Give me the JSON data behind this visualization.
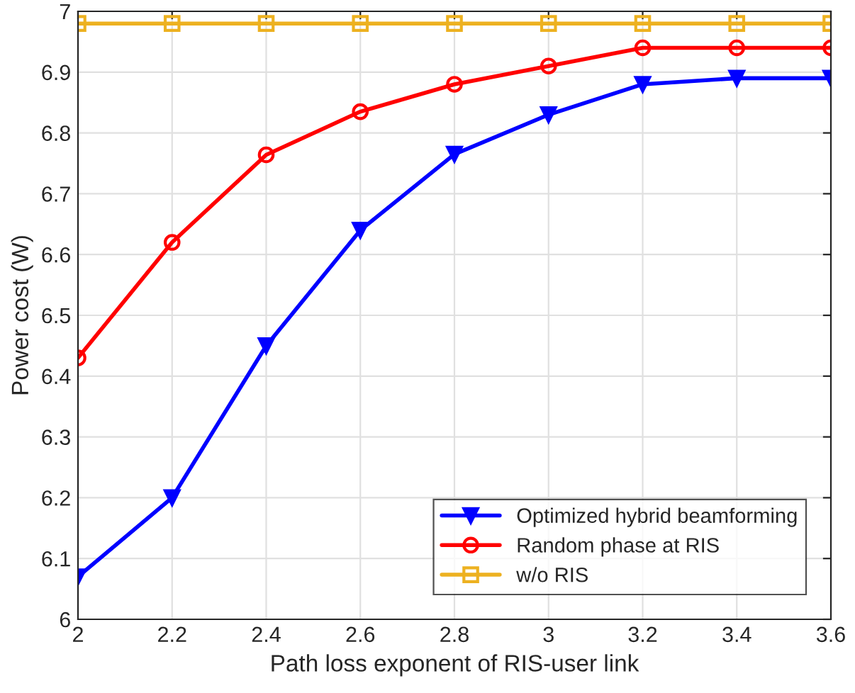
{
  "chart_data": {
    "type": "line",
    "xlabel": "Path loss exponent of RIS-user link",
    "ylabel": "Power cost (W)",
    "x": [
      2,
      2.2,
      2.4,
      2.6,
      2.8,
      3,
      3.2,
      3.4,
      3.6
    ],
    "series": [
      {
        "name": "Optimized hybrid beamforming",
        "color": "#0000ff",
        "marker": "triangle",
        "values": [
          6.07,
          6.2,
          6.45,
          6.64,
          6.765,
          6.83,
          6.88,
          6.89,
          6.89
        ]
      },
      {
        "name": "Random phase at RIS",
        "color": "#ff0000",
        "marker": "circle",
        "values": [
          6.43,
          6.62,
          6.764,
          6.835,
          6.88,
          6.91,
          6.94,
          6.94,
          6.94
        ]
      },
      {
        "name": "w/o RIS",
        "color": "#edb120",
        "marker": "square",
        "values": [
          6.98,
          6.98,
          6.98,
          6.98,
          6.98,
          6.98,
          6.98,
          6.98,
          6.98
        ]
      }
    ],
    "xlim": [
      2,
      3.6
    ],
    "xticks": [
      2,
      2.2,
      2.4,
      2.6,
      2.8,
      3,
      3.2,
      3.4,
      3.6
    ],
    "ylim": [
      6,
      7
    ],
    "yticks": [
      6,
      6.1,
      6.2,
      6.3,
      6.4,
      6.5,
      6.6,
      6.7,
      6.8,
      6.9,
      7
    ],
    "grid": true,
    "legend": "lower right",
    "line_style": "solid"
  }
}
